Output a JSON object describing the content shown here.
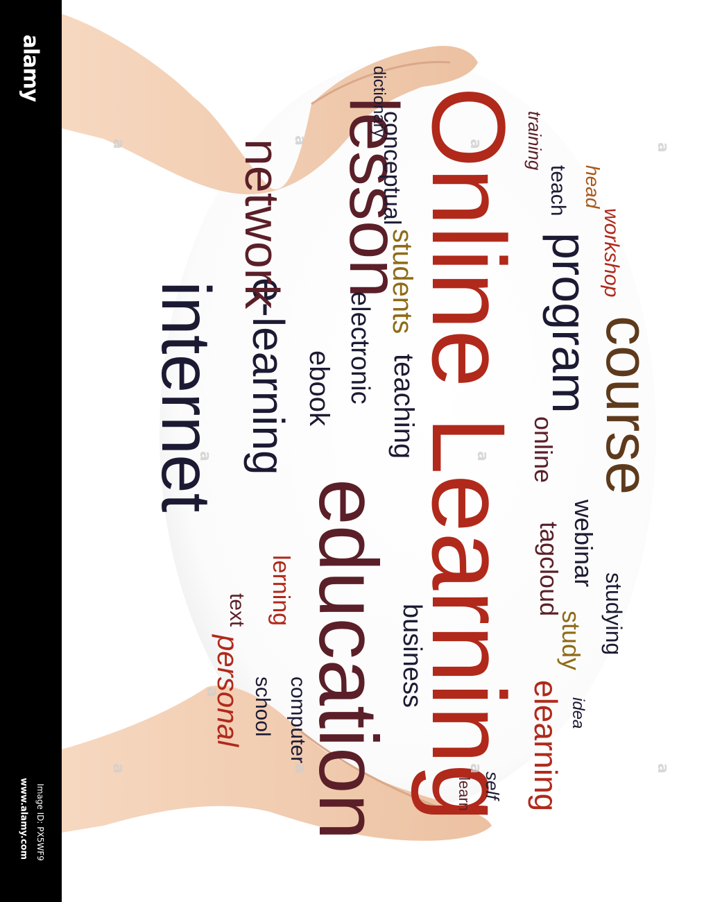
{
  "watermark": {
    "brand": "alamy",
    "image_id": "Image ID: PX5WF9",
    "site": "www.alamy.com",
    "letter": "a"
  },
  "cloud_words": {
    "dictionary": "dictionary",
    "online_learning": "Online Learning",
    "lesson": "lesson",
    "conceptual": "conceptual",
    "training": "training",
    "teach": "teach",
    "head": "head",
    "workshop": "workshop",
    "network": "network",
    "students": "students",
    "program": "program",
    "course": "course",
    "e_learning": "e-learning",
    "internet": "internet",
    "electronic": "electronic",
    "teaching": "teaching",
    "ebook": "ebook",
    "online": "online",
    "webinar": "webinar",
    "tagcloud": "tagcloud",
    "education": "education",
    "studying": "studying",
    "study": "study",
    "business": "business",
    "lerning": "lerning",
    "text": "text",
    "personal": "personal",
    "elearning": "elearning",
    "idea": "idea",
    "computer": "computer",
    "school": "school",
    "self": "self",
    "learn": "learn"
  },
  "colors": {
    "red": "#b0291b",
    "maroon": "#5a1f28",
    "navy": "#1c1a33",
    "brown": "#5e3a1c",
    "orange": "#a6581a",
    "gold": "#8d6b17",
    "skin": "#f2cdb0"
  }
}
